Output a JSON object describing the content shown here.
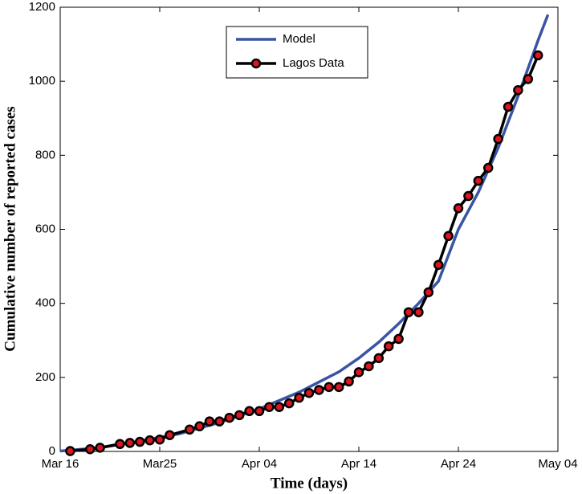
{
  "chart_data": {
    "type": "line",
    "x_label": "Time (days)",
    "y_label": "Cumulative number of reported cases",
    "xlim": [
      0,
      50
    ],
    "ylim": [
      0,
      1200
    ],
    "xticks": [
      {
        "value": 0,
        "label": "Mar 16"
      },
      {
        "value": 10,
        "label": "Mar25"
      },
      {
        "value": 20,
        "label": "Apr 04"
      },
      {
        "value": 30,
        "label": "Apr 14"
      },
      {
        "value": 40,
        "label": "Apr 24"
      },
      {
        "value": 50,
        "label": "May 04"
      }
    ],
    "yticks": [
      0,
      200,
      400,
      600,
      800,
      1000,
      1200
    ],
    "legend": "top-center",
    "series": [
      {
        "name": "Model",
        "color": "#3a54a4",
        "marker": false,
        "x": [
          0,
          4,
          8,
          12,
          16,
          20,
          24,
          28,
          30,
          32,
          34,
          36,
          38,
          40,
          42,
          44,
          46,
          48,
          49
        ],
        "values": [
          1,
          10,
          28,
          48,
          78,
          115,
          160,
          215,
          252,
          295,
          345,
          400,
          460,
          600,
          700,
          820,
          960,
          1110,
          1180
        ]
      },
      {
        "name": "Lagos Data",
        "color": "#000000",
        "marker_color": "#e0141e",
        "marker": true,
        "x": [
          1,
          3,
          4,
          6,
          7,
          8,
          9,
          10,
          11,
          13,
          14,
          15,
          16,
          17,
          18,
          19,
          20,
          21,
          22,
          23,
          24,
          25,
          26,
          27,
          28,
          29,
          30,
          31,
          32,
          33,
          34,
          35,
          36,
          37,
          38,
          39,
          40,
          41,
          42,
          43,
          44,
          45,
          46,
          47,
          48
        ],
        "values": [
          1,
          6,
          10,
          20,
          23,
          26,
          30,
          32,
          44,
          59,
          68,
          81,
          81,
          91,
          98,
          109,
          109,
          120,
          120,
          130,
          145,
          158,
          166,
          174,
          174,
          189,
          214,
          230,
          252,
          284,
          304,
          376,
          376,
          430,
          504,
          582,
          657,
          690,
          731,
          766,
          844,
          931,
          976,
          1006,
          1070
        ]
      }
    ]
  }
}
